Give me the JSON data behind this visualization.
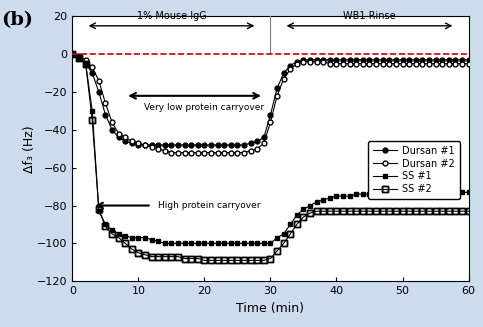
{
  "title_label": "(b)",
  "xlabel": "Time (min)",
  "ylabel": "Δf₃ (Hz)",
  "xlim": [
    0,
    60
  ],
  "ylim": [
    -120,
    20
  ],
  "yticks": [
    -120,
    -100,
    -80,
    -60,
    -40,
    -20,
    0,
    20
  ],
  "xticks": [
    0,
    10,
    20,
    30,
    40,
    50,
    60
  ],
  "bg_color": "#ccdcec",
  "plot_bg": "#ffffff",
  "dashed_line_y": 0,
  "dashed_color": "#cc0000",
  "section_div_x": 30,
  "mouse_igg_label": "1% Mouse IgG",
  "wb1_rinse_label": "WB1 Rinse",
  "low_carryover_label": "Very low protein carryover",
  "high_carryover_label": "High protein carryover",
  "legend_entries": [
    "Dursan #1",
    "Dursan #2",
    "SS #1",
    "SS #2"
  ],
  "dursan1_x": [
    0,
    1,
    2,
    3,
    4,
    5,
    6,
    7,
    8,
    9,
    10,
    11,
    12,
    13,
    14,
    15,
    16,
    17,
    18,
    19,
    20,
    21,
    22,
    23,
    24,
    25,
    26,
    27,
    28,
    29,
    30,
    31,
    32,
    33,
    34,
    35,
    36,
    37,
    38,
    39,
    40,
    41,
    42,
    43,
    44,
    45,
    46,
    47,
    48,
    49,
    50,
    51,
    52,
    53,
    54,
    55,
    56,
    57,
    58,
    59,
    60
  ],
  "dursan1_y": [
    0,
    -2,
    -5,
    -10,
    -20,
    -32,
    -40,
    -44,
    -46,
    -47,
    -48,
    -48,
    -48,
    -48,
    -48,
    -48,
    -48,
    -48,
    -48,
    -48,
    -48,
    -48,
    -48,
    -48,
    -48,
    -48,
    -48,
    -47,
    -46,
    -44,
    -32,
    -18,
    -10,
    -6,
    -4,
    -3,
    -3,
    -3,
    -3,
    -3,
    -3,
    -3,
    -3,
    -3,
    -3,
    -3,
    -3,
    -3,
    -3,
    -3,
    -3,
    -3,
    -3,
    -3,
    -3,
    -3,
    -3,
    -3,
    -3,
    -3,
    -3
  ],
  "dursan2_x": [
    0,
    1,
    2,
    3,
    4,
    5,
    6,
    7,
    8,
    9,
    10,
    11,
    12,
    13,
    14,
    15,
    16,
    17,
    18,
    19,
    20,
    21,
    22,
    23,
    24,
    25,
    26,
    27,
    28,
    29,
    30,
    31,
    32,
    33,
    34,
    35,
    36,
    37,
    38,
    39,
    40,
    41,
    42,
    43,
    44,
    45,
    46,
    47,
    48,
    49,
    50,
    51,
    52,
    53,
    54,
    55,
    56,
    57,
    58,
    59,
    60
  ],
  "dursan2_y": [
    0,
    -1,
    -3,
    -7,
    -14,
    -26,
    -36,
    -42,
    -44,
    -46,
    -47,
    -48,
    -49,
    -50,
    -51,
    -52,
    -52,
    -52,
    -52,
    -52,
    -52,
    -52,
    -52,
    -52,
    -52,
    -52,
    -52,
    -51,
    -50,
    -47,
    -36,
    -22,
    -13,
    -8,
    -5,
    -4,
    -4,
    -4,
    -4,
    -5,
    -5,
    -5,
    -5,
    -5,
    -5,
    -5,
    -5,
    -5,
    -5,
    -5,
    -5,
    -5,
    -5,
    -5,
    -5,
    -5,
    -5,
    -5,
    -5,
    -5,
    -5
  ],
  "ss1_x": [
    0,
    1,
    2,
    3,
    4,
    5,
    6,
    7,
    8,
    9,
    10,
    11,
    12,
    13,
    14,
    15,
    16,
    17,
    18,
    19,
    20,
    21,
    22,
    23,
    24,
    25,
    26,
    27,
    28,
    29,
    30,
    31,
    32,
    33,
    34,
    35,
    36,
    37,
    38,
    39,
    40,
    41,
    42,
    43,
    44,
    45,
    46,
    47,
    48,
    49,
    50,
    51,
    52,
    53,
    54,
    55,
    56,
    57,
    58,
    59,
    60
  ],
  "ss1_y": [
    0,
    -2,
    -5,
    -30,
    -83,
    -90,
    -93,
    -95,
    -96,
    -97,
    -97,
    -97,
    -98,
    -99,
    -100,
    -100,
    -100,
    -100,
    -100,
    -100,
    -100,
    -100,
    -100,
    -100,
    -100,
    -100,
    -100,
    -100,
    -100,
    -100,
    -100,
    -97,
    -95,
    -90,
    -85,
    -82,
    -80,
    -78,
    -77,
    -76,
    -75,
    -75,
    -75,
    -74,
    -74,
    -74,
    -74,
    -74,
    -73,
    -73,
    -73,
    -73,
    -73,
    -73,
    -73,
    -73,
    -73,
    -73,
    -73,
    -73,
    -73
  ],
  "ss2_x": [
    0,
    1,
    2,
    3,
    4,
    5,
    6,
    7,
    8,
    9,
    10,
    11,
    12,
    13,
    14,
    15,
    16,
    17,
    18,
    19,
    20,
    21,
    22,
    23,
    24,
    25,
    26,
    27,
    28,
    29,
    30,
    31,
    32,
    33,
    34,
    35,
    36,
    37,
    38,
    39,
    40,
    41,
    42,
    43,
    44,
    45,
    46,
    47,
    48,
    49,
    50,
    51,
    52,
    53,
    54,
    55,
    56,
    57,
    58,
    59,
    60
  ],
  "ss2_y": [
    0,
    -2,
    -5,
    -35,
    -82,
    -91,
    -95,
    -97,
    -100,
    -103,
    -105,
    -106,
    -107,
    -107,
    -107,
    -107,
    -107,
    -108,
    -108,
    -108,
    -109,
    -109,
    -109,
    -109,
    -109,
    -109,
    -109,
    -109,
    -109,
    -109,
    -108,
    -104,
    -100,
    -95,
    -90,
    -86,
    -84,
    -83,
    -83,
    -83,
    -83,
    -83,
    -83,
    -83,
    -83,
    -83,
    -83,
    -83,
    -83,
    -83,
    -83,
    -83,
    -83,
    -83,
    -83,
    -83,
    -83,
    -83,
    -83,
    -83,
    -83
  ]
}
